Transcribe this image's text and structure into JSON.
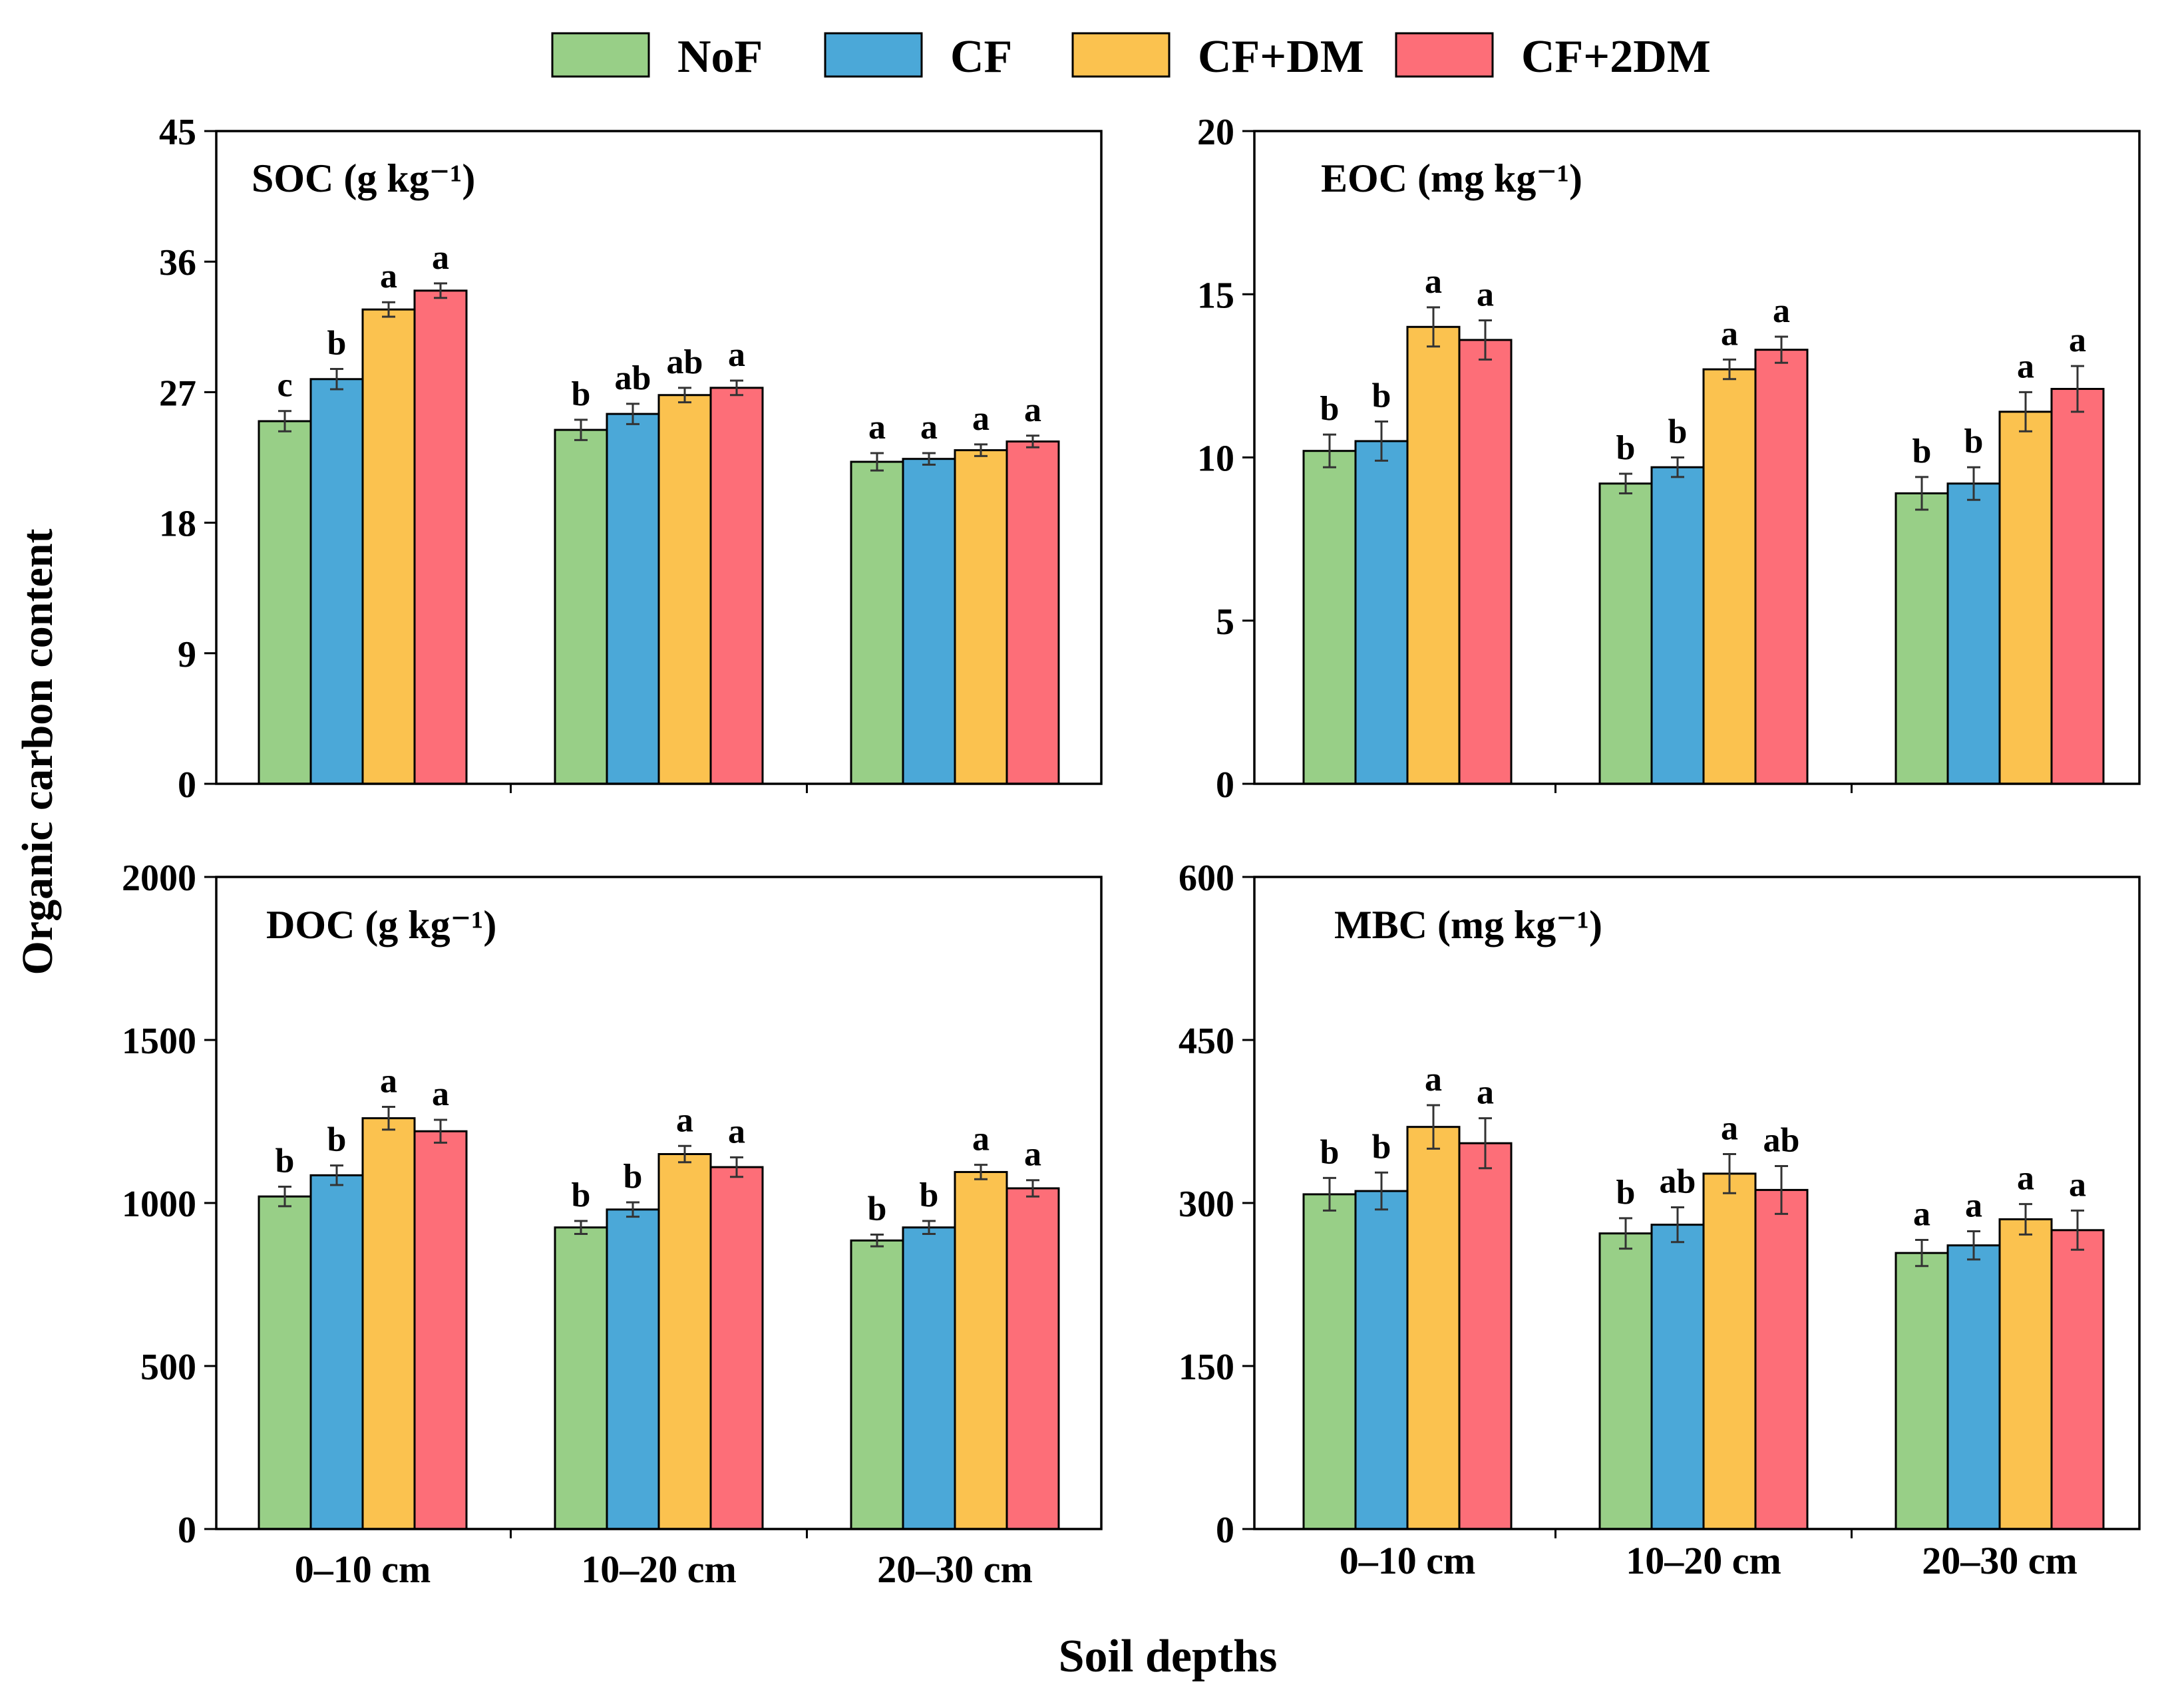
{
  "colors": {
    "NoF": "#98CF87",
    "CF": "#4BA8D8",
    "CF+DM": "#FBC24F",
    "CF+2DM": "#FD6E78"
  },
  "legend": [
    "NoF",
    "CF",
    "CF+DM",
    "CF+2DM"
  ],
  "ylabel": "Organic carbon content",
  "xlabel": "Soil depths",
  "chart_data": [
    {
      "type": "bar",
      "id": "soc",
      "title": "SOC (g kg⁻¹)",
      "categories": [
        "0–10 cm",
        "10–20 cm",
        "20–30 cm"
      ],
      "ylim": [
        0,
        45
      ],
      "yticks": [
        0,
        9,
        18,
        27,
        36,
        45
      ],
      "series": [
        {
          "name": "NoF",
          "values": [
            25.0,
            24.4,
            22.2
          ],
          "errors": [
            0.7,
            0.7,
            0.6
          ],
          "letters": [
            "c",
            "b",
            "a"
          ]
        },
        {
          "name": "CF",
          "values": [
            27.9,
            25.5,
            22.4
          ],
          "errors": [
            0.7,
            0.7,
            0.4
          ],
          "letters": [
            "b",
            "ab",
            "a"
          ]
        },
        {
          "name": "CF+DM",
          "values": [
            32.7,
            26.8,
            23.0
          ],
          "errors": [
            0.5,
            0.5,
            0.4
          ],
          "letters": [
            "a",
            "ab",
            "a"
          ]
        },
        {
          "name": "CF+2DM",
          "values": [
            34.0,
            27.3,
            23.6
          ],
          "errors": [
            0.5,
            0.5,
            0.4
          ],
          "letters": [
            "a",
            "a",
            "a"
          ]
        }
      ]
    },
    {
      "type": "bar",
      "id": "eoc",
      "title": "EOC (mg kg⁻¹)",
      "categories": [
        "0–10 cm",
        "10–20 cm",
        "20–30 cm"
      ],
      "ylim": [
        0,
        20
      ],
      "yticks": [
        0,
        5,
        10,
        15,
        20
      ],
      "series": [
        {
          "name": "NoF",
          "values": [
            10.2,
            9.2,
            8.9
          ],
          "errors": [
            0.5,
            0.3,
            0.5
          ],
          "letters": [
            "b",
            "b",
            "b"
          ]
        },
        {
          "name": "CF",
          "values": [
            10.5,
            9.7,
            9.2
          ],
          "errors": [
            0.6,
            0.3,
            0.5
          ],
          "letters": [
            "b",
            "b",
            "b"
          ]
        },
        {
          "name": "CF+DM",
          "values": [
            14.0,
            12.7,
            11.4
          ],
          "errors": [
            0.6,
            0.3,
            0.6
          ],
          "letters": [
            "a",
            "a",
            "a"
          ]
        },
        {
          "name": "CF+2DM",
          "values": [
            13.6,
            13.3,
            12.1
          ],
          "errors": [
            0.6,
            0.4,
            0.7
          ],
          "letters": [
            "a",
            "a",
            "a"
          ]
        }
      ]
    },
    {
      "type": "bar",
      "id": "doc",
      "title": "DOC (g kg⁻¹)",
      "categories": [
        "0–10 cm",
        "10–20 cm",
        "20–30 cm"
      ],
      "ylim": [
        0,
        2000
      ],
      "yticks": [
        0,
        500,
        1000,
        1500,
        2000
      ],
      "series": [
        {
          "name": "NoF",
          "values": [
            1020,
            925,
            885
          ],
          "errors": [
            30,
            20,
            18
          ],
          "letters": [
            "b",
            "b",
            "b"
          ]
        },
        {
          "name": "CF",
          "values": [
            1085,
            980,
            925
          ],
          "errors": [
            30,
            22,
            20
          ],
          "letters": [
            "b",
            "b",
            "b"
          ]
        },
        {
          "name": "CF+DM",
          "values": [
            1260,
            1150,
            1095
          ],
          "errors": [
            35,
            25,
            22
          ],
          "letters": [
            "a",
            "a",
            "a"
          ]
        },
        {
          "name": "CF+2DM",
          "values": [
            1220,
            1110,
            1045
          ],
          "errors": [
            35,
            30,
            25
          ],
          "letters": [
            "a",
            "a",
            "a"
          ]
        }
      ]
    },
    {
      "type": "bar",
      "id": "mbc",
      "title": "MBC (mg kg⁻¹)",
      "categories": [
        "0–10 cm",
        "10–20 cm",
        "20–30 cm"
      ],
      "ylim": [
        0,
        600
      ],
      "yticks": [
        0,
        150,
        300,
        450,
        600
      ],
      "series": [
        {
          "name": "NoF",
          "values": [
            308,
            272,
            254
          ],
          "errors": [
            15,
            14,
            12
          ],
          "letters": [
            "b",
            "b",
            "a"
          ]
        },
        {
          "name": "CF",
          "values": [
            311,
            280,
            261
          ],
          "errors": [
            17,
            16,
            13
          ],
          "letters": [
            "b",
            "ab",
            "a"
          ]
        },
        {
          "name": "CF+DM",
          "values": [
            370,
            327,
            285
          ],
          "errors": [
            20,
            18,
            14
          ],
          "letters": [
            "a",
            "a",
            "a"
          ]
        },
        {
          "name": "CF+2DM",
          "values": [
            355,
            312,
            275
          ],
          "errors": [
            23,
            22,
            18
          ],
          "letters": [
            "a",
            "ab",
            "a"
          ]
        }
      ]
    }
  ]
}
